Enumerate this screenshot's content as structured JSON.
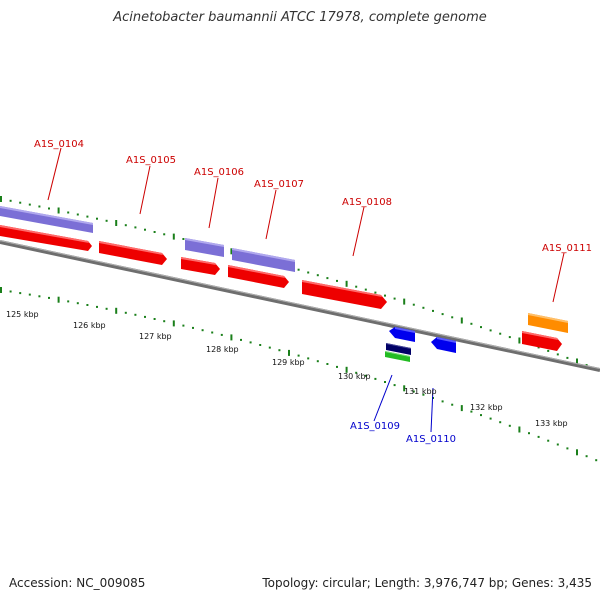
{
  "title": "Acinetobacter baumannii ATCC 17978, complete genome",
  "footer": {
    "accession": "Accession: NC_009085",
    "summary": "Topology: circular; Length: 3,976,747 bp; Genes: 3,435"
  },
  "colors": {
    "forward_label": "#cc0000",
    "reverse_label": "#0000cc",
    "cds_red": "#ee0000",
    "cds_purple": "#7b6fd6",
    "cds_orange": "#ff8c00",
    "cds_blue": "#0000ee",
    "cds_navy": "#000066",
    "cds_green": "#22bb22",
    "tick_green": "#1a7f1a",
    "backbone": "#777777"
  },
  "ruler": {
    "ticks": [
      "125 kbp",
      "126 kbp",
      "127 kbp",
      "128 kbp",
      "129 kbp",
      "130 kbp",
      "131 kbp",
      "132 kbp",
      "133 kbp"
    ]
  },
  "genes": {
    "forward": [
      {
        "locus": "A1S_0104"
      },
      {
        "locus": "A1S_0105"
      },
      {
        "locus": "A1S_0106"
      },
      {
        "locus": "A1S_0107"
      },
      {
        "locus": "A1S_0108"
      },
      {
        "locus": "A1S_0111"
      }
    ],
    "reverse": [
      {
        "locus": "A1S_0109"
      },
      {
        "locus": "A1S_0110"
      }
    ]
  }
}
